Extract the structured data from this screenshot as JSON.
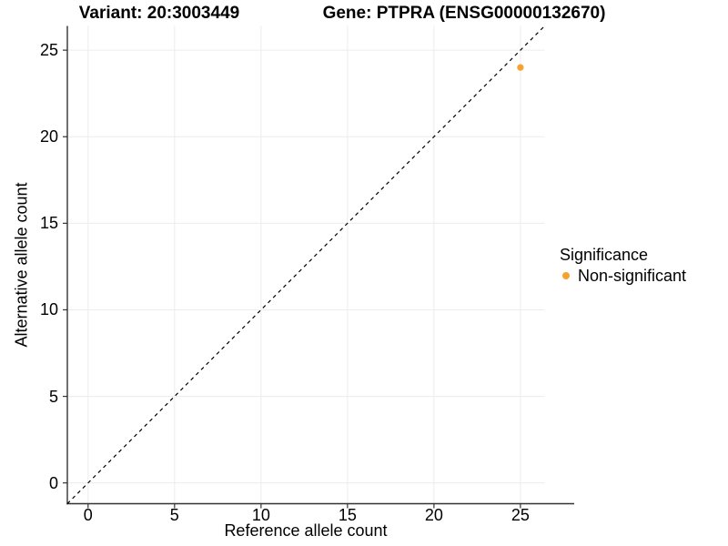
{
  "chart_data": {
    "type": "scatter",
    "title_left": "Variant: 20:3003449",
    "title_right": "Gene: PTPRA (ENSG00000132670)",
    "xlabel": "Reference allele count",
    "ylabel": "Alternative allele count",
    "x_ticks": [
      0,
      5,
      10,
      15,
      20,
      25
    ],
    "y_ticks": [
      0,
      5,
      10,
      15,
      20,
      25
    ],
    "xlim": [
      -1.2,
      26.4
    ],
    "ylim": [
      -1.2,
      26.4
    ],
    "grid": "major",
    "identity_line": {
      "style": "dashed",
      "slope": 1,
      "intercept": 0,
      "color": "#000000"
    },
    "points": [
      {
        "x": 25,
        "y": 24,
        "series": "Non-significant",
        "color": "#F9A12E"
      }
    ],
    "legend": {
      "title": "Significance",
      "position": "right",
      "items": [
        {
          "label": "Non-significant",
          "color": "#F9A12E"
        }
      ]
    }
  }
}
